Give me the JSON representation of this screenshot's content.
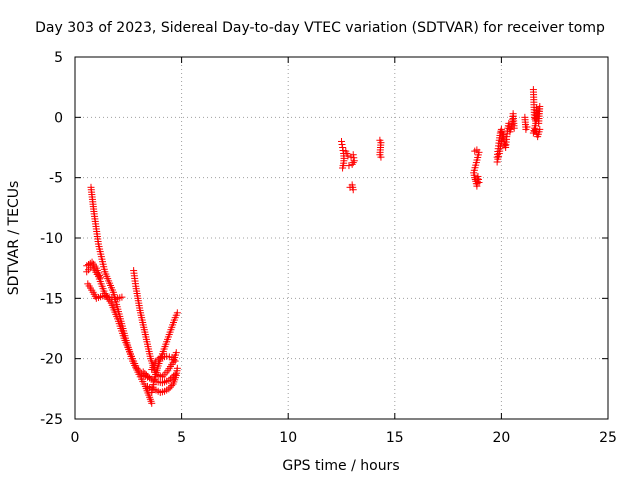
{
  "chart_data": {
    "type": "scatter",
    "title": "Day 303 of 2023, Sidereal Day-to-day VTEC variation (SDTVAR) for receiver tomp",
    "xlabel": "GPS time / hours",
    "ylabel": "SDTVAR / TECUs",
    "xlim": [
      0,
      25
    ],
    "ylim": [
      -25,
      5
    ],
    "x_ticks": [
      0,
      5,
      10,
      15,
      20,
      25
    ],
    "y_ticks": [
      5,
      0,
      -5,
      -10,
      -15,
      -20,
      -25
    ],
    "x_tick_labels": [
      "0",
      "5",
      "10",
      "15",
      "20",
      "25"
    ],
    "y_tick_labels": [
      "5",
      "0",
      "-5",
      "-10",
      "-15",
      "-20",
      "-25"
    ],
    "grid": true,
    "marker": "+",
    "color": "#ff0000",
    "segments": [
      [
        [
          0.75,
          -5.8
        ],
        [
          0.9,
          -8.0
        ],
        [
          1.1,
          -10.5
        ],
        [
          1.4,
          -12.8
        ],
        [
          1.8,
          -14.5
        ],
        [
          2.1,
          -16.5
        ],
        [
          2.4,
          -18.5
        ],
        [
          2.7,
          -20.2
        ],
        [
          3.0,
          -21.3
        ],
        [
          3.3,
          -22.3
        ],
        [
          3.5,
          -23.2
        ],
        [
          3.6,
          -23.7
        ]
      ],
      [
        [
          0.55,
          -12.8
        ],
        [
          0.8,
          -12.3
        ],
        [
          1.1,
          -13.2
        ],
        [
          1.4,
          -14.6
        ],
        [
          1.7,
          -15.4
        ],
        [
          2.0,
          -16.7
        ],
        [
          2.3,
          -18.3
        ],
        [
          2.6,
          -19.6
        ],
        [
          2.9,
          -20.8
        ],
        [
          3.2,
          -21.4
        ],
        [
          3.5,
          -21.6
        ]
      ],
      [
        [
          0.6,
          -13.8
        ],
        [
          0.85,
          -14.5
        ],
        [
          1.0,
          -15.0
        ],
        [
          1.3,
          -14.8
        ],
        [
          1.6,
          -14.9
        ],
        [
          2.0,
          -15.0
        ],
        [
          2.2,
          -14.9
        ]
      ],
      [
        [
          0.55,
          -12.3
        ],
        [
          0.8,
          -12.0
        ],
        [
          1.0,
          -12.5
        ],
        [
          1.2,
          -13.3
        ]
      ],
      [
        [
          2.75,
          -12.7
        ],
        [
          2.85,
          -14.0
        ],
        [
          3.05,
          -16.0
        ],
        [
          3.3,
          -18.0
        ],
        [
          3.55,
          -20.0
        ],
        [
          3.8,
          -21.3
        ],
        [
          4.1,
          -21.5
        ],
        [
          4.35,
          -21.0
        ],
        [
          4.6,
          -20.3
        ],
        [
          4.75,
          -19.5
        ]
      ],
      [
        [
          3.6,
          -20.9
        ],
        [
          3.8,
          -20.2
        ],
        [
          4.0,
          -19.9
        ],
        [
          4.3,
          -19.8
        ],
        [
          4.55,
          -19.9
        ],
        [
          4.7,
          -20.2
        ]
      ],
      [
        [
          3.4,
          -22.3
        ],
        [
          3.6,
          -22.5
        ],
        [
          3.8,
          -22.6
        ],
        [
          4.0,
          -22.8
        ],
        [
          4.2,
          -22.7
        ],
        [
          4.4,
          -22.5
        ],
        [
          4.6,
          -22.1
        ],
        [
          4.75,
          -21.4
        ],
        [
          4.8,
          -20.8
        ]
      ],
      [
        [
          3.2,
          -21.1
        ],
        [
          3.5,
          -21.6
        ],
        [
          3.8,
          -21.9
        ],
        [
          4.1,
          -22.0
        ],
        [
          4.4,
          -21.8
        ],
        [
          4.7,
          -21.3
        ]
      ],
      [
        [
          3.6,
          -22.8
        ],
        [
          3.75,
          -21.5
        ],
        [
          3.9,
          -20.6
        ],
        [
          4.1,
          -19.6
        ],
        [
          4.3,
          -18.6
        ],
        [
          4.5,
          -17.6
        ],
        [
          4.7,
          -16.6
        ],
        [
          4.8,
          -16.2
        ]
      ],
      [
        [
          12.5,
          -2.0
        ],
        [
          12.55,
          -2.5
        ],
        [
          12.6,
          -3.0
        ],
        [
          12.62,
          -3.4
        ],
        [
          12.6,
          -3.8
        ],
        [
          12.55,
          -4.2
        ]
      ],
      [
        [
          12.7,
          -2.8
        ],
        [
          12.8,
          -3.2
        ],
        [
          12.95,
          -3.3
        ],
        [
          13.05,
          -3.1
        ],
        [
          13.1,
          -3.6
        ],
        [
          13.0,
          -3.9
        ],
        [
          12.85,
          -4.0
        ]
      ],
      [
        [
          12.9,
          -5.8
        ],
        [
          13.0,
          -5.6
        ],
        [
          13.05,
          -6.0
        ]
      ],
      [
        [
          14.3,
          -1.9
        ],
        [
          14.35,
          -2.1
        ],
        [
          14.3,
          -3.1
        ],
        [
          14.35,
          -3.3
        ]
      ],
      [
        [
          18.75,
          -2.8
        ],
        [
          18.85,
          -2.7
        ],
        [
          18.95,
          -2.9
        ],
        [
          18.7,
          -4.6
        ],
        [
          18.75,
          -5.0
        ],
        [
          18.8,
          -5.3
        ],
        [
          18.85,
          -5.7
        ],
        [
          18.9,
          -4.9
        ],
        [
          18.95,
          -5.4
        ]
      ],
      [
        [
          19.8,
          -3.3
        ],
        [
          19.85,
          -2.6
        ],
        [
          19.9,
          -1.9
        ],
        [
          19.95,
          -1.3
        ],
        [
          20.0,
          -1.0
        ],
        [
          20.1,
          -1.7
        ],
        [
          20.15,
          -2.2
        ],
        [
          20.2,
          -2.5
        ],
        [
          20.25,
          -1.6
        ],
        [
          20.3,
          -0.9
        ],
        [
          20.35,
          -0.5
        ],
        [
          20.4,
          -1.2
        ],
        [
          20.5,
          -0.6
        ],
        [
          20.55,
          0.3
        ],
        [
          20.6,
          -0.9
        ]
      ],
      [
        [
          19.8,
          -3.7
        ],
        [
          19.9,
          -3.0
        ],
        [
          20.0,
          -2.0
        ],
        [
          20.1,
          -1.4
        ]
      ],
      [
        [
          21.1,
          0.0
        ],
        [
          21.15,
          -1.0
        ],
        [
          21.2,
          -0.8
        ]
      ],
      [
        [
          21.5,
          2.3
        ],
        [
          21.55,
          0.0
        ],
        [
          21.6,
          -0.3
        ],
        [
          21.65,
          0.8
        ],
        [
          21.7,
          0.3
        ],
        [
          21.75,
          -0.5
        ],
        [
          21.8,
          0.9
        ],
        [
          21.75,
          0.5
        ],
        [
          21.5,
          -1.3
        ],
        [
          21.6,
          -1.0
        ],
        [
          21.7,
          -1.6
        ],
        [
          21.8,
          -1.0
        ]
      ]
    ]
  }
}
